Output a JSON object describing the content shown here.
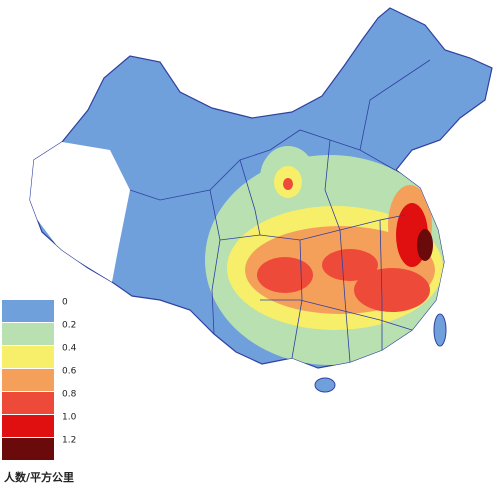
{
  "legend": {
    "title": "人数/平方公里",
    "items": [
      {
        "label": "0",
        "color": "#6fa0dc"
      },
      {
        "label": "0.2",
        "color": "#b8e0b0"
      },
      {
        "label": "0.4",
        "color": "#f7ef6a"
      },
      {
        "label": "0.6",
        "color": "#f5a05a"
      },
      {
        "label": "0.8",
        "color": "#ee4a3a"
      },
      {
        "label": "1.0",
        "color": "#e01010"
      },
      {
        "label": "1.2",
        "color": "#6a0a0a"
      }
    ]
  }
}
